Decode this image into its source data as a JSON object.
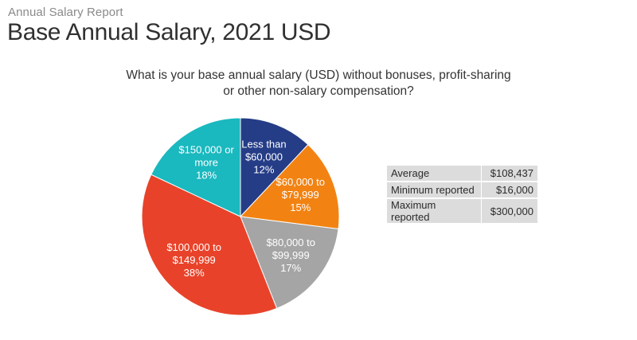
{
  "header": {
    "report_label": "Annual Salary Report",
    "title": "Base Annual Salary, 2021 USD"
  },
  "question": {
    "line1": "What is your base annual salary (USD) without bonuses, profit-sharing",
    "line2": "or other non-salary compensation?"
  },
  "chart_data": {
    "type": "pie",
    "title": "",
    "slices": [
      {
        "label": [
          "Less than",
          "$60,000"
        ],
        "value": 12,
        "value_label": "12%",
        "color": "#253d87"
      },
      {
        "label": [
          "$60,000 to",
          "$79,999"
        ],
        "value": 15,
        "value_label": "15%",
        "color": "#f28312"
      },
      {
        "label": [
          "$80,000 to",
          "$99,999"
        ],
        "value": 17,
        "value_label": "17%",
        "color": "#a5a5a5"
      },
      {
        "label": [
          "$100,000 to",
          "$149,999"
        ],
        "value": 38,
        "value_label": "38%",
        "color": "#e8432a"
      },
      {
        "label": [
          "$150,000 or",
          "more"
        ],
        "value": 18,
        "value_label": "18%",
        "color": "#1ab8bf"
      }
    ]
  },
  "stats": [
    {
      "label": "Average",
      "value": "$108,437"
    },
    {
      "label": "Minimum reported",
      "value": "$16,000"
    },
    {
      "label": "Maximum reported",
      "value": "$300,000"
    }
  ]
}
